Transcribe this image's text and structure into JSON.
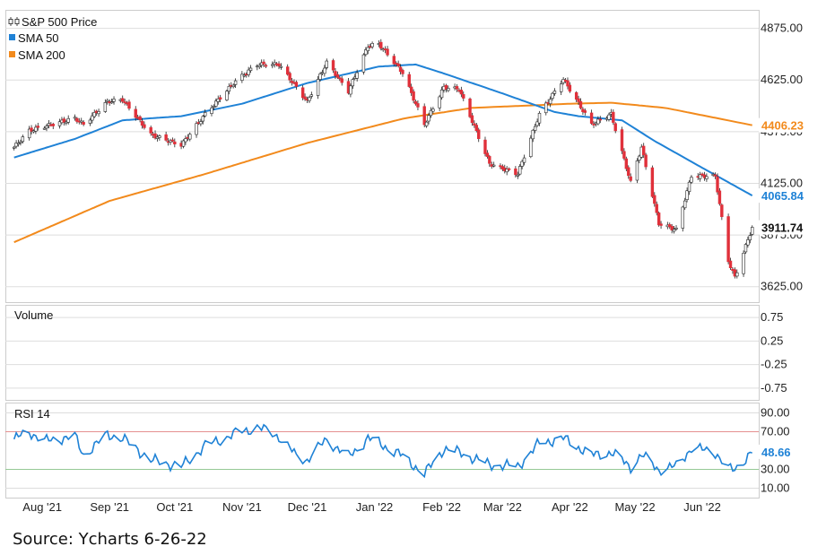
{
  "source_note": "Source: Ycharts 6-26-22",
  "colors": {
    "up": "#ffffff",
    "down": "#e0303a",
    "wick": "#222222",
    "sma50": "#1f82d6",
    "sma200": "#f28a1c",
    "rsi": "#1f82d6",
    "grid": "#dddddd",
    "ob_line": "#e59090",
    "os_line": "#96c996"
  },
  "chart_data": [
    {
      "type": "candlestick",
      "panel": "price",
      "legend": [
        {
          "label": "S&P 500 Price",
          "icon": "candle-icon"
        },
        {
          "label": "SMA 50",
          "color": "#1f82d6"
        },
        {
          "label": "SMA 200",
          "color": "#f28a1c"
        }
      ],
      "x_ticks": [
        "Aug '21",
        "Sep '21",
        "Oct '21",
        "Nov '21",
        "Dec '21",
        "Jan '22",
        "Feb '22",
        "Mar '22",
        "Apr '22",
        "May '22",
        "Jun '22"
      ],
      "y_ticks": [
        "4875.00",
        "4625.00",
        "4375.00",
        "4125.00",
        "3875.00",
        "3625.00"
      ],
      "ylim": [
        3550,
        4960
      ],
      "last_values": {
        "price": "3911.74",
        "sma50": "4065.84",
        "sma200": "4406.23"
      },
      "price_anchors": [
        [
          "2021-07-19",
          4300
        ],
        [
          "2021-07-26",
          4380
        ],
        [
          "2021-08-02",
          4400
        ],
        [
          "2021-08-16",
          4440
        ],
        [
          "2021-08-20",
          4410
        ],
        [
          "2021-08-31",
          4520
        ],
        [
          "2021-09-07",
          4530
        ],
        [
          "2021-09-20",
          4360
        ],
        [
          "2021-10-04",
          4310
        ],
        [
          "2021-10-15",
          4460
        ],
        [
          "2021-10-29",
          4620
        ],
        [
          "2021-11-08",
          4700
        ],
        [
          "2021-11-18",
          4700
        ],
        [
          "2021-11-26",
          4590
        ],
        [
          "2021-12-01",
          4520
        ],
        [
          "2021-12-10",
          4710
        ],
        [
          "2021-12-20",
          4570
        ],
        [
          "2021-12-29",
          4790
        ],
        [
          "2022-01-03",
          4800
        ],
        [
          "2022-01-14",
          4660
        ],
        [
          "2022-01-24",
          4410
        ],
        [
          "2022-02-02",
          4590
        ],
        [
          "2022-02-09",
          4580
        ],
        [
          "2022-02-23",
          4220
        ],
        [
          "2022-03-08",
          4170
        ],
        [
          "2022-03-18",
          4460
        ],
        [
          "2022-03-29",
          4630
        ],
        [
          "2022-04-11",
          4410
        ],
        [
          "2022-04-20",
          4460
        ],
        [
          "2022-04-29",
          4130
        ],
        [
          "2022-05-04",
          4300
        ],
        [
          "2022-05-12",
          3930
        ],
        [
          "2022-05-20",
          3900
        ],
        [
          "2022-05-27",
          4160
        ],
        [
          "2022-06-07",
          4160
        ],
        [
          "2022-06-13",
          3750
        ],
        [
          "2022-06-16",
          3670
        ],
        [
          "2022-06-24",
          3911.74
        ]
      ],
      "sma50_anchors": [
        [
          "2021-07-19",
          4250
        ],
        [
          "2021-08-16",
          4340
        ],
        [
          "2021-09-07",
          4430
        ],
        [
          "2021-10-04",
          4450
        ],
        [
          "2021-11-01",
          4510
        ],
        [
          "2021-12-01",
          4610
        ],
        [
          "2022-01-03",
          4690
        ],
        [
          "2022-01-20",
          4700
        ],
        [
          "2022-02-01",
          4660
        ],
        [
          "2022-03-01",
          4560
        ],
        [
          "2022-03-25",
          4470
        ],
        [
          "2022-04-05",
          4450
        ],
        [
          "2022-04-25",
          4430
        ],
        [
          "2022-05-10",
          4330
        ],
        [
          "2022-06-01",
          4200
        ],
        [
          "2022-06-24",
          4065.84
        ]
      ],
      "sma200_anchors": [
        [
          "2021-07-19",
          3840
        ],
        [
          "2021-09-01",
          4040
        ],
        [
          "2021-10-15",
          4170
        ],
        [
          "2021-12-01",
          4320
        ],
        [
          "2022-01-15",
          4440
        ],
        [
          "2022-02-15",
          4490
        ],
        [
          "2022-04-01",
          4510
        ],
        [
          "2022-04-20",
          4515
        ],
        [
          "2022-05-15",
          4490
        ],
        [
          "2022-06-24",
          4406.23
        ]
      ]
    },
    {
      "type": "bar",
      "panel": "volume",
      "title": "Volume",
      "y_ticks": [
        "0.75",
        "0.25",
        "-0.25",
        "-0.75"
      ],
      "ylim": [
        -1,
        1
      ],
      "values": []
    },
    {
      "type": "line",
      "panel": "rsi",
      "title": "RSI 14",
      "y_ticks": [
        "90.00",
        "70.00",
        "30.00",
        "10.00"
      ],
      "ylim": [
        0,
        100
      ],
      "overbought": 70,
      "oversold": 30,
      "last_value": "48.66",
      "rsi_anchors": [
        [
          "2021-07-19",
          62
        ],
        [
          "2021-07-26",
          70
        ],
        [
          "2021-08-02",
          60
        ],
        [
          "2021-08-16",
          65
        ],
        [
          "2021-08-20",
          45
        ],
        [
          "2021-08-31",
          67
        ],
        [
          "2021-09-07",
          63
        ],
        [
          "2021-09-20",
          40
        ],
        [
          "2021-10-04",
          33
        ],
        [
          "2021-10-15",
          55
        ],
        [
          "2021-10-29",
          68
        ],
        [
          "2021-11-08",
          75
        ],
        [
          "2021-11-18",
          65
        ],
        [
          "2021-11-26",
          44
        ],
        [
          "2021-12-01",
          40
        ],
        [
          "2021-12-10",
          62
        ],
        [
          "2021-12-20",
          43
        ],
        [
          "2021-12-29",
          63
        ],
        [
          "2022-01-03",
          58
        ],
        [
          "2022-01-14",
          44
        ],
        [
          "2022-01-24",
          25
        ],
        [
          "2022-02-02",
          52
        ],
        [
          "2022-02-09",
          48
        ],
        [
          "2022-02-23",
          35
        ],
        [
          "2022-03-08",
          33
        ],
        [
          "2022-03-18",
          58
        ],
        [
          "2022-03-29",
          63
        ],
        [
          "2022-04-11",
          45
        ],
        [
          "2022-04-20",
          48
        ],
        [
          "2022-04-29",
          33
        ],
        [
          "2022-05-04",
          45
        ],
        [
          "2022-05-12",
          30
        ],
        [
          "2022-05-20",
          33
        ],
        [
          "2022-05-27",
          53
        ],
        [
          "2022-06-07",
          48
        ],
        [
          "2022-06-13",
          30
        ],
        [
          "2022-06-16",
          30
        ],
        [
          "2022-06-24",
          48.66
        ]
      ]
    }
  ]
}
